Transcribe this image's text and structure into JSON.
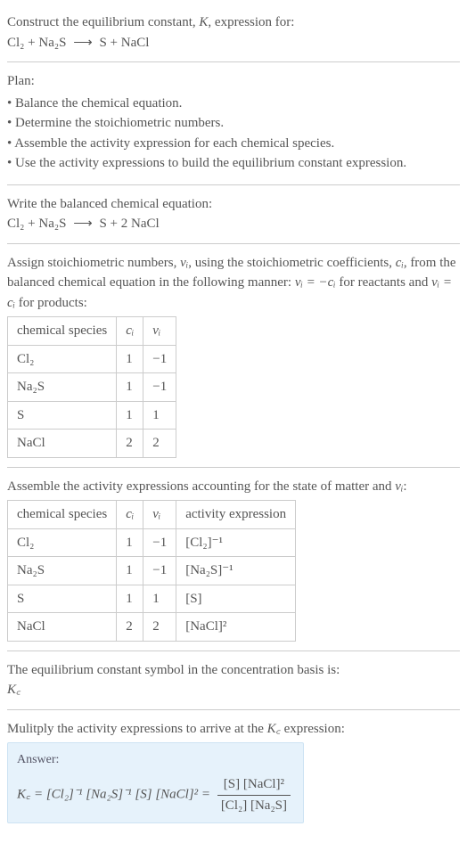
{
  "intro": {
    "line1": "Construct the equilibrium constant, ",
    "K": "K",
    "line1b": ", expression for:",
    "eq_lhs": "Cl₂ + Na₂S",
    "arrow": "⟶",
    "eq_rhs": "S + NaCl"
  },
  "plan": {
    "heading": "Plan:",
    "items": [
      "Balance the chemical equation.",
      "Determine the stoichiometric numbers.",
      "Assemble the activity expression for each chemical species.",
      "Use the activity expressions to build the equilibrium constant expression."
    ]
  },
  "balanced": {
    "heading": "Write the balanced chemical equation:",
    "lhs": "Cl₂ + Na₂S",
    "arrow": "⟶",
    "rhs": "S + 2 NaCl"
  },
  "stoich": {
    "text_a": "Assign stoichiometric numbers, ",
    "nu_i": "νᵢ",
    "text_b": ", using the stoichiometric coefficients, ",
    "c_i": "cᵢ",
    "text_c": ", from the balanced chemical equation in the following manner: ",
    "rel1": "νᵢ = −cᵢ",
    "text_d": " for reactants and ",
    "rel2": "νᵢ = cᵢ",
    "text_e": " for products:",
    "table": {
      "headers": [
        "chemical species",
        "cᵢ",
        "νᵢ"
      ],
      "rows": [
        [
          "Cl₂",
          "1",
          "−1"
        ],
        [
          "Na₂S",
          "1",
          "−1"
        ],
        [
          "S",
          "1",
          "1"
        ],
        [
          "NaCl",
          "2",
          "2"
        ]
      ]
    }
  },
  "activity": {
    "heading_a": "Assemble the activity expressions accounting for the state of matter and ",
    "nu_i": "νᵢ",
    "heading_b": ":",
    "table": {
      "headers": [
        "chemical species",
        "cᵢ",
        "νᵢ",
        "activity expression"
      ],
      "rows": [
        [
          "Cl₂",
          "1",
          "−1",
          "[Cl₂]⁻¹"
        ],
        [
          "Na₂S",
          "1",
          "−1",
          "[Na₂S]⁻¹"
        ],
        [
          "S",
          "1",
          "1",
          "[S]"
        ],
        [
          "NaCl",
          "2",
          "2",
          "[NaCl]²"
        ]
      ]
    }
  },
  "symbol": {
    "text": "The equilibrium constant symbol in the concentration basis is:",
    "Kc": "K꜀"
  },
  "final": {
    "heading_a": "Mulitply the activity expressions to arrive at the ",
    "Kc": "K꜀",
    "heading_b": " expression:",
    "answer_label": "Answer:",
    "lhs": "K꜀ = [Cl₂]⁻¹ [Na₂S]⁻¹ [S] [NaCl]² = ",
    "num": "[S] [NaCl]²",
    "den": "[Cl₂] [Na₂S]"
  }
}
